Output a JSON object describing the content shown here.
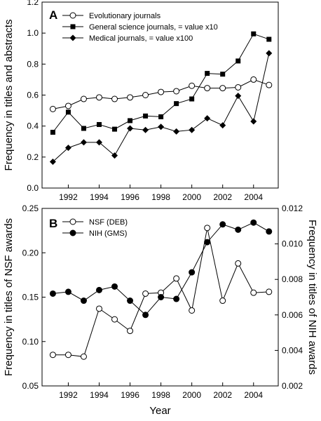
{
  "chart_data": [
    {
      "type": "line",
      "panel_label": "A",
      "ylabel": "Frequency in titles and abstracts",
      "xlabel": "",
      "xlim": [
        1990.3,
        2005.6
      ],
      "ylim": [
        0,
        1.2
      ],
      "x_ticks": [
        1992,
        1994,
        1996,
        1998,
        2000,
        2002,
        2004
      ],
      "y_ticks": [
        0.0,
        0.2,
        0.4,
        0.6,
        0.8,
        1.0,
        1.2
      ],
      "y_tick_labels": [
        "0.0",
        "0.2",
        "0.4",
        "0.6",
        "0.8",
        "1.0",
        "1.2"
      ],
      "grid": false,
      "legend_position": "top-left",
      "x": [
        1991,
        1992,
        1993,
        1994,
        1995,
        1996,
        1997,
        1998,
        1999,
        2000,
        2001,
        2002,
        2003,
        2004,
        2005
      ],
      "series": [
        {
          "name": "Evolutionary journals",
          "marker": "circle-open",
          "values": [
            0.51,
            0.53,
            0.575,
            0.585,
            0.575,
            0.585,
            0.6,
            0.62,
            0.625,
            0.66,
            0.645,
            0.645,
            0.65,
            0.7,
            0.665
          ]
        },
        {
          "name": "General science journals, = value x10",
          "marker": "square-filled",
          "values": [
            0.36,
            0.49,
            0.385,
            0.41,
            0.38,
            0.435,
            0.465,
            0.46,
            0.545,
            0.575,
            0.74,
            0.735,
            0.82,
            0.995,
            0.96
          ]
        },
        {
          "name": "Medical journals, = value x100",
          "marker": "diamond-filled",
          "values": [
            0.17,
            0.26,
            0.295,
            0.295,
            0.21,
            0.385,
            0.375,
            0.395,
            0.365,
            0.375,
            0.45,
            0.405,
            0.595,
            0.43,
            0.87
          ]
        }
      ]
    },
    {
      "type": "line",
      "panel_label": "B",
      "ylabel": "Frequency in titles of NSF awards",
      "ylabel_right": "Frequency in titles of NIH awards",
      "xlabel": "Year",
      "xlim": [
        1990.3,
        2005.6
      ],
      "ylim": [
        0.05,
        0.25
      ],
      "ylim_right": [
        0.002,
        0.012
      ],
      "x_ticks": [
        1992,
        1994,
        1996,
        1998,
        2000,
        2002,
        2004
      ],
      "y_ticks": [
        0.05,
        0.1,
        0.15,
        0.2,
        0.25
      ],
      "y_tick_labels": [
        "0.05",
        "0.10",
        "0.15",
        "0.20",
        "0.25"
      ],
      "y_ticks_right": [
        0.002,
        0.004,
        0.006,
        0.008,
        0.01,
        0.012
      ],
      "y_tick_labels_right": [
        "0.002",
        "0.004",
        "0.006",
        "0.008",
        "0.010",
        "0.012"
      ],
      "grid": false,
      "legend_position": "top-left",
      "x": [
        1991,
        1992,
        1993,
        1994,
        1995,
        1996,
        1997,
        1998,
        1999,
        2000,
        2001,
        2002,
        2003,
        2004,
        2005
      ],
      "series": [
        {
          "name": "NSF (DEB)",
          "marker": "circle-open",
          "axis": "left",
          "values": [
            0.085,
            0.085,
            0.083,
            0.137,
            0.125,
            0.112,
            0.154,
            0.155,
            0.171,
            0.135,
            0.228,
            0.146,
            0.188,
            0.155,
            0.156
          ]
        },
        {
          "name": "NIH (GMS)",
          "marker": "circle-filled",
          "axis": "right",
          "values": [
            0.0072,
            0.0073,
            0.0068,
            0.0074,
            0.0076,
            0.0068,
            0.006,
            0.007,
            0.0069,
            0.0084,
            0.0101,
            0.0111,
            0.0108,
            0.0112,
            0.0107
          ]
        }
      ]
    }
  ]
}
